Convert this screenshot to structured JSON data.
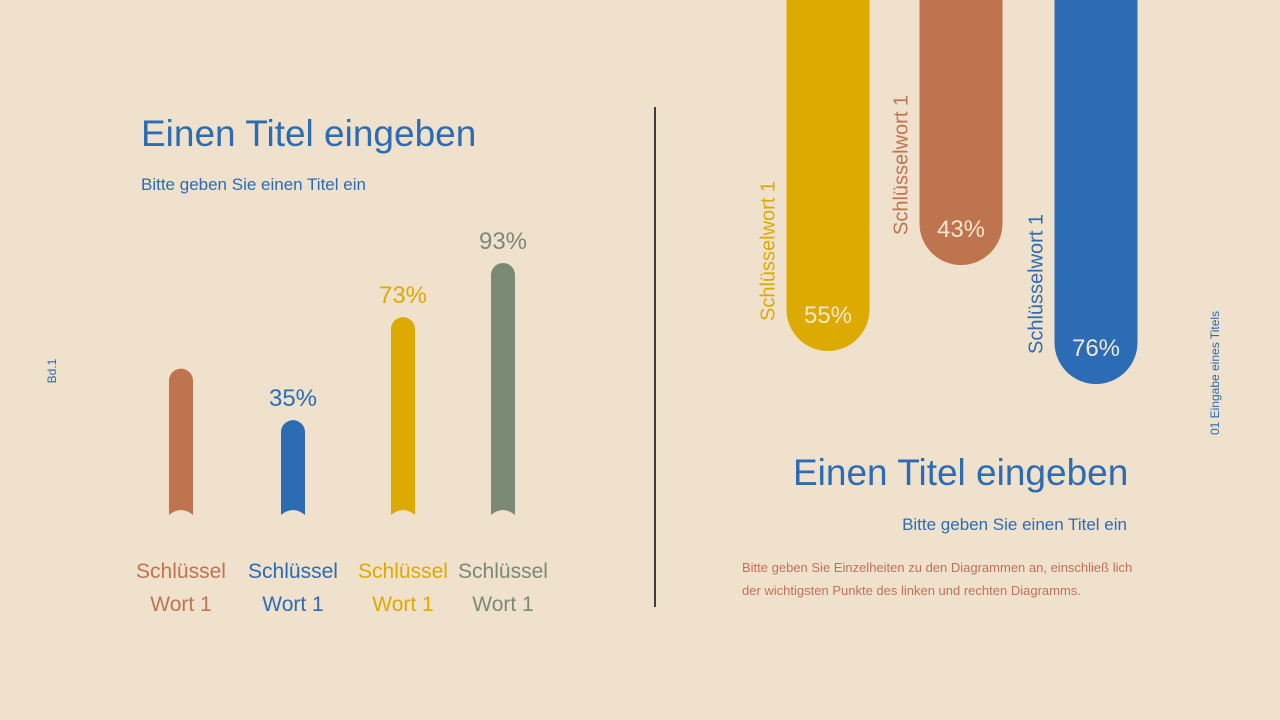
{
  "left": {
    "title": "Einen Titel eingeben",
    "subtitle": "Bitte geben Sie einen Titel ein",
    "side_label": "Bd.1"
  },
  "right": {
    "title": "Einen Titel eingeben",
    "subtitle": "Bitte geben Sie einen Titel ein",
    "description": "Bitte geben Sie Einzelheiten zu den Diagrammen an, einschließ lich der wichtigsten Punkte des linken und rechten Diagramms.",
    "side_label": "01 Eingabe eines Titels"
  },
  "chart_data": [
    {
      "type": "bar",
      "orientation": "vertical",
      "categories": [
        "Schlüssel Wort 1",
        "Schlüssel Wort 1",
        "Schlüssel Wort 1",
        "Schlüssel Wort 1"
      ],
      "values": [
        54,
        35,
        73,
        93
      ],
      "data_labels": [
        "",
        "35%",
        "73%",
        "93%"
      ],
      "colors": [
        "#bf7450",
        "#2b6cb5",
        "#dcaa00",
        "#7b8a74"
      ],
      "grid": false
    },
    {
      "type": "bar",
      "orientation": "hanging-from-top",
      "categories": [
        "Schlüsselwort 1",
        "Schlüsselwort 1",
        "Schlüsselwort 1"
      ],
      "values": [
        55,
        43,
        76
      ],
      "data_labels": [
        "55%",
        "43%",
        "76%"
      ],
      "colors": [
        "#dcaa00",
        "#bf7450",
        "#2b6cb5"
      ],
      "grid": false
    }
  ]
}
